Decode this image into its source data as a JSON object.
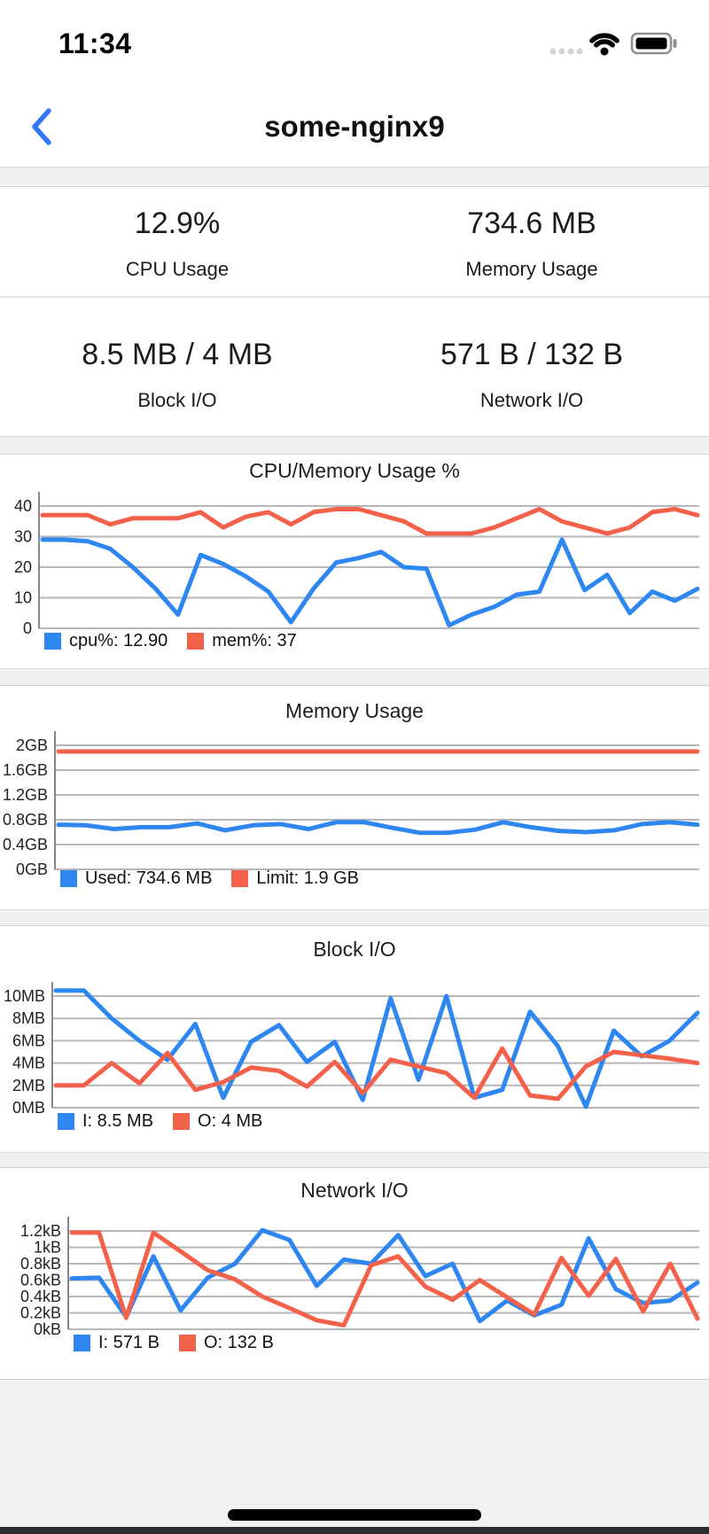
{
  "status_bar": {
    "time": "11:34"
  },
  "nav": {
    "title": "some-nginx9"
  },
  "stats": {
    "cpu": {
      "value": "12.9%",
      "label": "CPU Usage"
    },
    "memory": {
      "value": "734.6 MB",
      "label": "Memory Usage"
    },
    "block": {
      "value": "8.5 MB / 4 MB",
      "label": "Block I/O"
    },
    "network": {
      "value": "571 B / 132 B",
      "label": "Network I/O"
    }
  },
  "colors": {
    "blue": "#2e86f1",
    "red": "#f4614b",
    "grid": "#b6b6b8",
    "axis": "#87878b",
    "tick_text": "#222222",
    "back_chevron": "#3477f6",
    "band": "#f0f0f1"
  },
  "chart_data": [
    {
      "type": "line",
      "title": "CPU/Memory Usage %",
      "ymin": 0,
      "ymax": 40,
      "yticks": [
        "0",
        "10",
        "20",
        "30",
        "40"
      ],
      "grid": true,
      "legend_position": "bottom-left",
      "legend": [
        {
          "label": "cpu%: 12.90",
          "color": "blue"
        },
        {
          "label": "mem%: 37",
          "color": "red"
        }
      ],
      "series": [
        {
          "name": "cpu%",
          "color": "blue",
          "values": [
            29,
            29,
            28.5,
            26,
            20,
            13,
            4.5,
            24,
            21,
            17,
            12,
            2,
            13,
            21.5,
            23,
            25,
            20,
            19.5,
            1,
            4.5,
            7,
            11,
            12,
            29,
            12.5,
            17.5,
            5,
            12,
            9,
            12.9
          ]
        },
        {
          "name": "mem%",
          "color": "red",
          "values": [
            37,
            37,
            37,
            34,
            36,
            36,
            36,
            38,
            33,
            36.5,
            38,
            34,
            38,
            39,
            39,
            37,
            35,
            31,
            31,
            31,
            33,
            36,
            39,
            35,
            33,
            31,
            33,
            38,
            39,
            37
          ]
        }
      ]
    },
    {
      "type": "line",
      "title": "Memory Usage",
      "ymin": 0,
      "ymax": 2,
      "yticks": [
        "0GB",
        "0.4GB",
        "0.8GB",
        "1.2GB",
        "1.6GB",
        "2GB"
      ],
      "grid": true,
      "legend_position": "bottom-left",
      "legend": [
        {
          "label": "Used: 734.6 MB",
          "color": "blue"
        },
        {
          "label": "Limit: 1.9 GB",
          "color": "red"
        }
      ],
      "series": [
        {
          "name": "Used",
          "color": "blue",
          "values": [
            0.72,
            0.71,
            0.65,
            0.68,
            0.68,
            0.74,
            0.63,
            0.71,
            0.73,
            0.65,
            0.76,
            0.76,
            0.67,
            0.59,
            0.59,
            0.64,
            0.76,
            0.68,
            0.62,
            0.6,
            0.63,
            0.73,
            0.76,
            0.72
          ]
        },
        {
          "name": "Limit",
          "color": "red",
          "values": [
            1.9,
            1.9,
            1.9,
            1.9,
            1.9,
            1.9,
            1.9,
            1.9,
            1.9,
            1.9,
            1.9,
            1.9,
            1.9,
            1.9,
            1.9,
            1.9,
            1.9,
            1.9,
            1.9,
            1.9,
            1.9,
            1.9,
            1.9,
            1.9
          ]
        }
      ]
    },
    {
      "type": "line",
      "title": "Block I/O",
      "ymin": 0,
      "ymax": 10,
      "yticks": [
        "0MB",
        "2MB",
        "4MB",
        "6MB",
        "8MB",
        "10MB"
      ],
      "grid": true,
      "legend_position": "bottom-left",
      "legend": [
        {
          "label": "I: 8.5 MB",
          "color": "blue"
        },
        {
          "label": "O: 4 MB",
          "color": "red"
        }
      ],
      "series": [
        {
          "name": "I",
          "color": "blue",
          "values": [
            10.5,
            10.5,
            8,
            6,
            4.3,
            7.5,
            0.9,
            5.9,
            7.4,
            4.1,
            5.9,
            0.7,
            9.8,
            2.5,
            10,
            0.9,
            1.6,
            8.6,
            5.5,
            0.1,
            6.9,
            4.6,
            6,
            8.5
          ]
        },
        {
          "name": "O",
          "color": "red",
          "values": [
            2,
            2,
            4,
            2.2,
            4.9,
            1.6,
            2.3,
            3.6,
            3.3,
            1.9,
            4.1,
            1.3,
            4.3,
            3.7,
            3.1,
            0.9,
            5.3,
            1.1,
            0.8,
            3.7,
            5,
            4.7,
            4.4,
            4
          ]
        }
      ]
    },
    {
      "type": "line",
      "title": "Network I/O",
      "ymin": 0,
      "ymax": 1.2,
      "yticks": [
        "0kB",
        "0.2kB",
        "0.4kB",
        "0.6kB",
        "0.8kB",
        "1kB",
        "1.2kB"
      ],
      "grid": true,
      "legend_position": "bottom-left",
      "legend": [
        {
          "label": "I: 571 B",
          "color": "blue"
        },
        {
          "label": "O: 132 B",
          "color": "red"
        }
      ],
      "series": [
        {
          "name": "I",
          "color": "blue",
          "values": [
            0.62,
            0.63,
            0.15,
            0.89,
            0.23,
            0.63,
            0.8,
            1.21,
            1.09,
            0.53,
            0.85,
            0.8,
            1.15,
            0.65,
            0.8,
            0.1,
            0.35,
            0.17,
            0.3,
            1.11,
            0.49,
            0.32,
            0.35,
            0.57
          ]
        },
        {
          "name": "O",
          "color": "red",
          "values": [
            1.18,
            1.18,
            0.14,
            1.18,
            0.95,
            0.72,
            0.61,
            0.4,
            0.26,
            0.11,
            0.05,
            0.78,
            0.89,
            0.52,
            0.36,
            0.6,
            0.39,
            0.18,
            0.87,
            0.41,
            0.86,
            0.22,
            0.8,
            0.13
          ]
        }
      ]
    }
  ]
}
